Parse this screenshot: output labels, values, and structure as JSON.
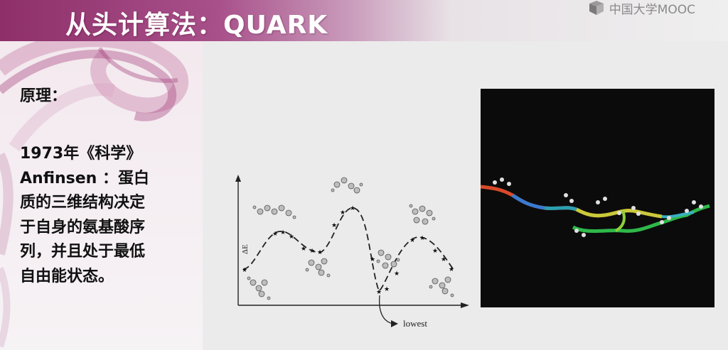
{
  "slide": {
    "title": "从头计算法：QUARK",
    "logo_text": "中国大学MOOC",
    "principle_label": "原理：",
    "description_lines": [
      "1973年《科学》",
      "Anfinsen ：蛋白",
      "质的三维结构决定",
      "于自身的氨基酸序",
      "列，并且处于最低",
      "自由能状态。"
    ]
  },
  "energy_plot": {
    "ylabel": "ΔE",
    "annotation": "lowest"
  },
  "colors": {
    "title_bar": "#8e2f69",
    "title_text": "#ffffff",
    "body_text": "#111111",
    "protein_bg": "#0b0b0b"
  },
  "icons": [
    "mooc-logo-icon",
    "arrow-icon",
    "molecule-icon"
  ]
}
